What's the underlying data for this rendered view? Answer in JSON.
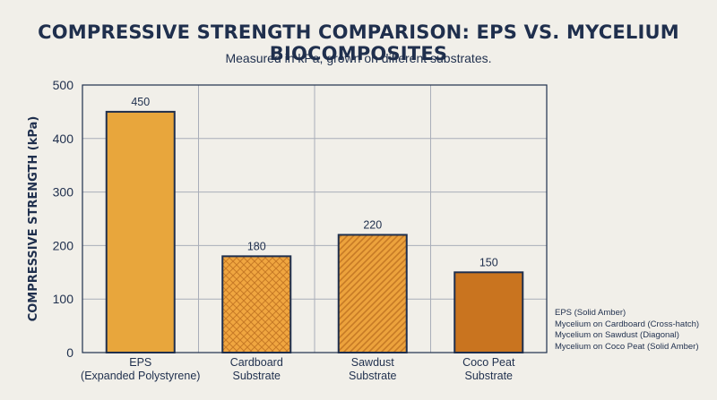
{
  "chart_data": {
    "type": "bar",
    "title": "COMPRESSIVE STRENGTH COMPARISON: EPS VS. MYCELIUM BIOCOMPOSITES",
    "subtitle": "Measured in kPa, grown on different substrates.",
    "ylabel": "COMPRESSIVE STRENGTH (kPa)",
    "xlabel": "",
    "ylim": [
      0,
      500
    ],
    "yticks": [
      0,
      100,
      200,
      300,
      400,
      500
    ],
    "grid": true,
    "categories": [
      [
        "EPS",
        "(Expanded Polystyrene)"
      ],
      [
        "Cardboard",
        "Substrate"
      ],
      [
        "Sawdust",
        "Substrate"
      ],
      [
        "Coco Peat",
        "Substrate"
      ]
    ],
    "values": [
      450,
      180,
      220,
      150
    ],
    "data_labels": [
      "450",
      "180",
      "220",
      "150"
    ],
    "bar_styles": [
      "solid-amber",
      "cross-hatch",
      "diagonal",
      "solid-dark-amber"
    ],
    "colors": {
      "eps": "#e8a63c",
      "cardboard": "#f0a640",
      "sawdust": "#eca23c",
      "coco": "#c9741f",
      "outline": "#1f2f4d",
      "hatch": "#c77a25"
    },
    "legend": {
      "placement": "bottom-right",
      "entries": [
        "EPS (Solid Amber)",
        "Mycelium on Cardboard (Cross-hatch)",
        "Mycelium on Sawdust (Diagonal)",
        "Mycelium on Coco Peat (Solid Amber)"
      ]
    }
  }
}
